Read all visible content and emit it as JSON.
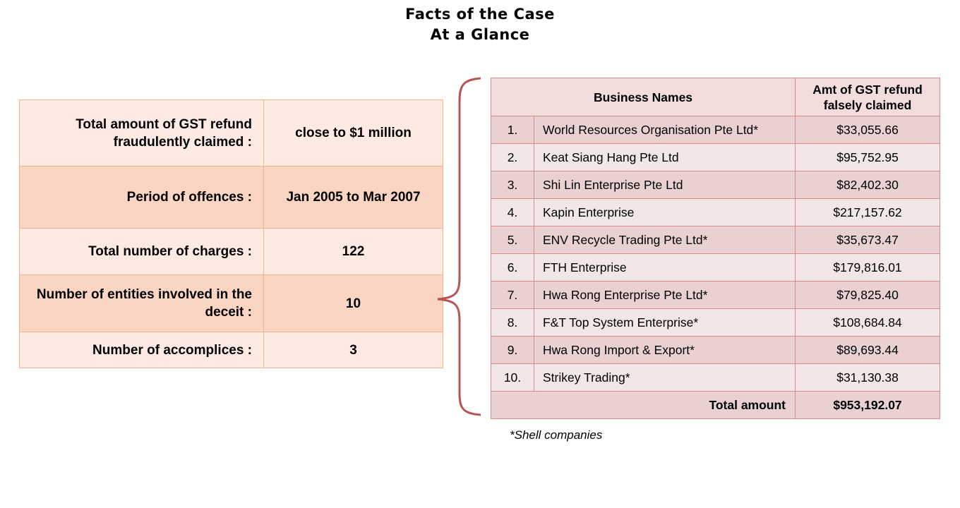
{
  "title": {
    "line1": "Facts of the Case",
    "line2": "At a Glance"
  },
  "facts": [
    {
      "label": "Total amount of GST refund fraudulently claimed :",
      "value": "close to $1 million",
      "shade": "light"
    },
    {
      "label": "Period of offences :",
      "value": "Jan 2005 to Mar 2007",
      "shade": "dark"
    },
    {
      "label": "Total number of charges :",
      "value": "122",
      "shade": "light"
    },
    {
      "label": "Number of entities involved in the deceit :",
      "value": "10",
      "shade": "dark"
    },
    {
      "label": "Number of accomplices :",
      "value": "3",
      "shade": "light"
    }
  ],
  "business_table": {
    "header_names": "Business Names",
    "header_amount": "Amt of GST refund falsely claimed",
    "rows": [
      {
        "num": "1.",
        "name": "World Resources Organisation Pte Ltd*",
        "amount": "$33,055.66"
      },
      {
        "num": "2.",
        "name": "Keat Siang Hang Pte Ltd",
        "amount": "$95,752.95"
      },
      {
        "num": "3.",
        "name": "Shi Lin Enterprise Pte Ltd",
        "amount": "$82,402.30"
      },
      {
        "num": "4.",
        "name": "Kapin Enterprise",
        "amount": "$217,157.62"
      },
      {
        "num": "5.",
        "name": "ENV Recycle Trading Pte Ltd*",
        "amount": "$35,673.47"
      },
      {
        "num": "6.",
        "name": "FTH Enterprise",
        "amount": "$179,816.01"
      },
      {
        "num": "7.",
        "name": "Hwa Rong Enterprise Pte Ltd*",
        "amount": "$79,825.40"
      },
      {
        "num": "8.",
        "name": "F&T Top System Enterprise*",
        "amount": "$108,684.84"
      },
      {
        "num": "9.",
        "name": "Hwa Rong Import & Export*",
        "amount": "$89,693.44"
      },
      {
        "num": "10.",
        "name": "Strikey Trading*",
        "amount": "$31,130.38"
      }
    ],
    "total_label": "Total amount",
    "total_value": "$953,192.07"
  },
  "footnote": "*Shell companies",
  "colors": {
    "facts_border": "#f2b48a",
    "facts_light": "#fdebe3",
    "facts_dark": "#fbd5c3",
    "table_border": "#d98a8a",
    "brace": "#b85454"
  }
}
